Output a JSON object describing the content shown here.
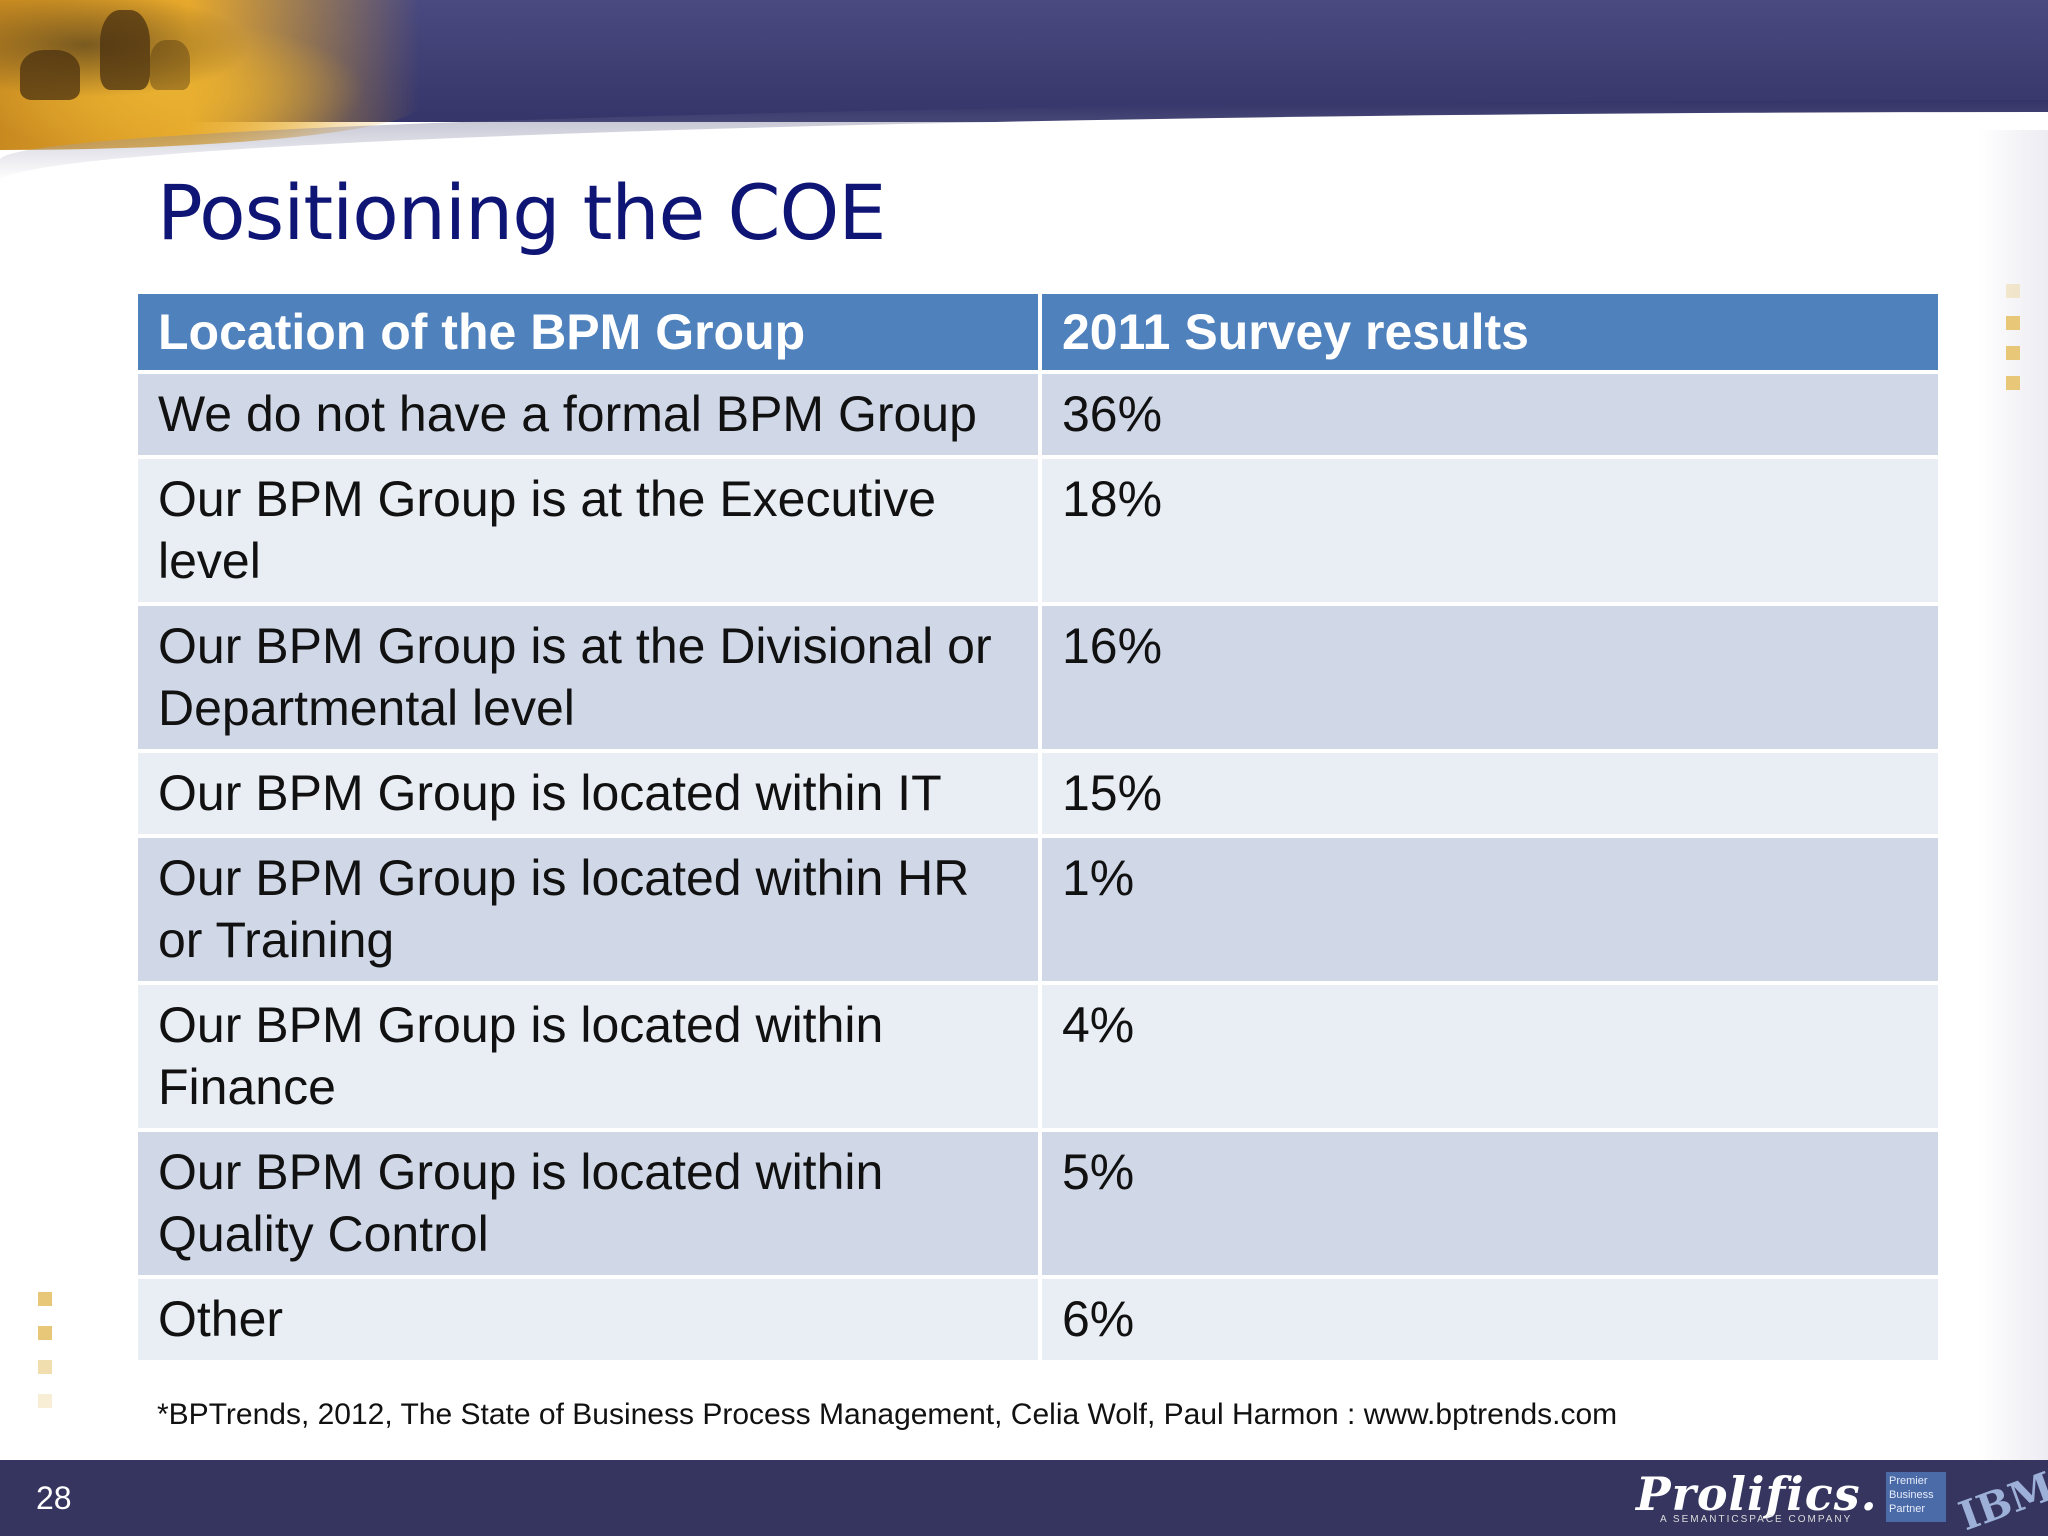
{
  "slide": {
    "title": "Positioning the COE",
    "page_number": "28"
  },
  "table": {
    "headers": [
      "Location of the BPM Group",
      "2011 Survey results"
    ],
    "rows": [
      {
        "location": "We do not have a formal BPM Group",
        "result": "36%"
      },
      {
        "location": "Our BPM Group is at the Executive level",
        "result": "18%"
      },
      {
        "location": "Our BPM Group is at the Divisional or Departmental level",
        "result": "16%"
      },
      {
        "location": "Our BPM Group is located within IT",
        "result": "15%"
      },
      {
        "location": "Our BPM Group is located within HR or Training",
        "result": "1%"
      },
      {
        "location": "Our BPM Group is located within Finance",
        "result": "4%"
      },
      {
        "location": "Our BPM Group is located within Quality Control",
        "result": "5%"
      },
      {
        "location": "Other",
        "result": "6%"
      }
    ]
  },
  "footnote": "*BPTrends, 2012, The State of Business Process Management, Celia Wolf, Paul Harmon :  www.bptrends.com",
  "footer": {
    "logo_text": "Prolifics.",
    "logo_tagline": "A SEMANTICSPACE COMPANY",
    "partner_text": "Premier Business Partner",
    "partner_logo": "IBM"
  },
  "colors": {
    "title": "#0f1575",
    "header_bg": "#4f81bd",
    "row_odd": "#d0d8e8",
    "row_even": "#e9edf4",
    "band": "#35355f"
  }
}
